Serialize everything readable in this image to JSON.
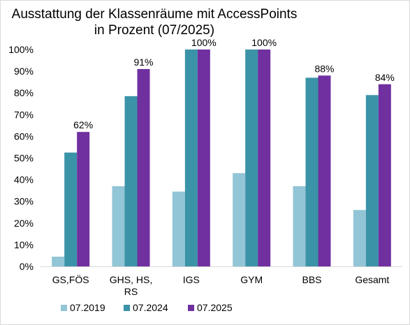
{
  "chart_data": {
    "type": "bar",
    "title_lines": [
      "Ausstattung der Klassenräume mit AccessPoints",
      "in Prozent (07/2025)"
    ],
    "categories": [
      [
        "GS,FÖS"
      ],
      [
        "GHS, HS,",
        "RS"
      ],
      [
        "IGS"
      ],
      [
        "GYM"
      ],
      [
        "BBS"
      ],
      [
        "Gesamt"
      ]
    ],
    "series": [
      {
        "name": "07.2019",
        "color": "#92c5d6",
        "values": [
          4.5,
          37,
          34.5,
          43,
          37,
          26
        ]
      },
      {
        "name": "07.2024",
        "color": "#3b93a8",
        "values": [
          52.5,
          78.5,
          100,
          100,
          87,
          79
        ]
      },
      {
        "name": "07.2025",
        "color": "#7030a0",
        "values": [
          62,
          91,
          100,
          100,
          88,
          84
        ],
        "labels": [
          "62%",
          "91%",
          "100%",
          "100%",
          "88%",
          "84%"
        ]
      }
    ],
    "y_ticks": [
      "0%",
      "10%",
      "20%",
      "30%",
      "40%",
      "50%",
      "60%",
      "70%",
      "80%",
      "90%",
      "100%"
    ],
    "ylim": [
      0,
      100
    ],
    "grid": false,
    "legend_position": "bottom"
  }
}
